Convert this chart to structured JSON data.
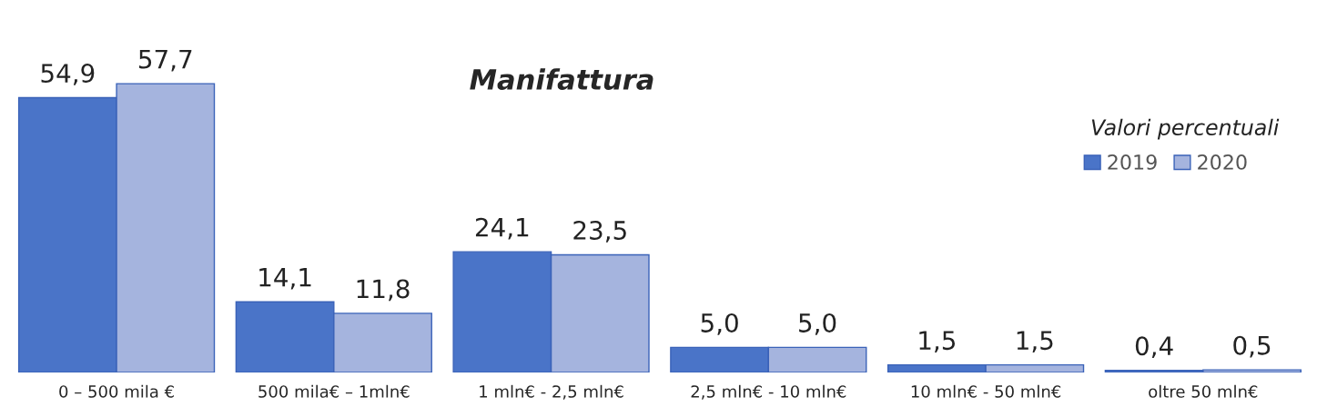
{
  "chart_data": {
    "type": "bar",
    "title": "Manifattura",
    "annotations": [
      "Valori percentuali"
    ],
    "categories": [
      "0 – 500 mila €",
      "500 mila€ – 1mln€",
      "1 mln€ - 2,5 mln€",
      "2,5 mln€ - 10 mln€",
      "10 mln€ - 50 mln€",
      "oltre 50 mln€"
    ],
    "series": [
      {
        "name": "2019",
        "color": "#4a74c8",
        "values": [
          54.9,
          14.1,
          24.1,
          5.0,
          1.5,
          0.4
        ],
        "value_labels": [
          "54,9",
          "14,1",
          "24,1",
          "5,0",
          "1,5",
          "0,4"
        ]
      },
      {
        "name": "2020",
        "color": "#a5b4de",
        "values": [
          57.7,
          11.8,
          23.5,
          5.0,
          1.5,
          0.5
        ],
        "value_labels": [
          "57,7",
          "11,8",
          "23,5",
          "5,0",
          "1,5",
          "0,5"
        ]
      }
    ],
    "legend": "top right",
    "grid": false
  }
}
